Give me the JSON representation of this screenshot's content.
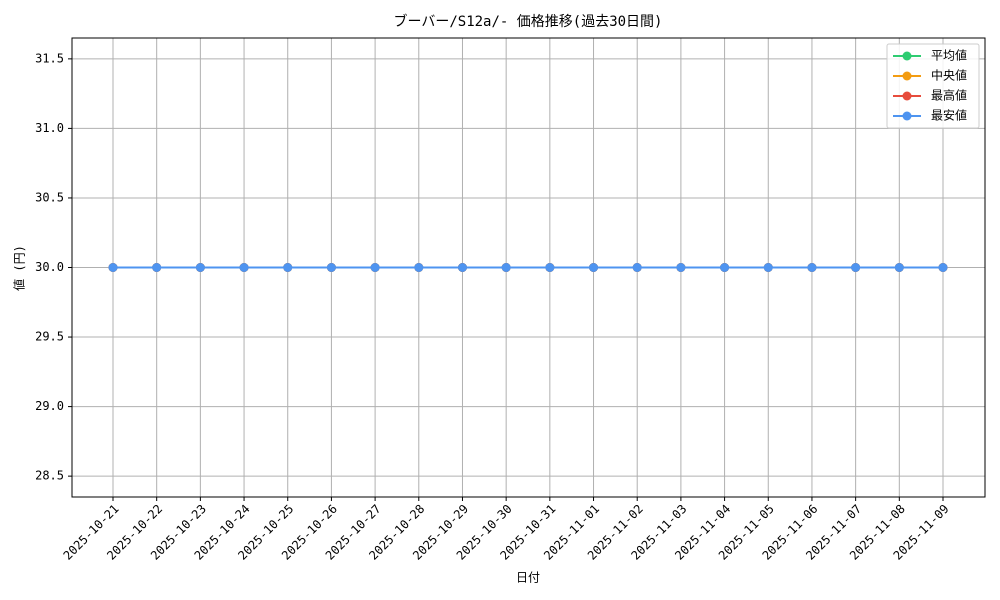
{
  "chart_data": {
    "type": "line",
    "title": "ブーバー/S12a/- 価格推移(過去30日間)",
    "x_label": "日付",
    "y_label": "値 (円)",
    "categories": [
      "2025-10-21",
      "2025-10-22",
      "2025-10-23",
      "2025-10-24",
      "2025-10-25",
      "2025-10-26",
      "2025-10-27",
      "2025-10-28",
      "2025-10-29",
      "2025-10-30",
      "2025-10-31",
      "2025-11-01",
      "2025-11-02",
      "2025-11-03",
      "2025-11-04",
      "2025-11-05",
      "2025-11-06",
      "2025-11-07",
      "2025-11-08",
      "2025-11-09"
    ],
    "series": [
      {
        "name": "平均値",
        "color": "#2ecc71",
        "values": [
          30,
          30,
          30,
          30,
          30,
          30,
          30,
          30,
          30,
          30,
          30,
          30,
          30,
          30,
          30,
          30,
          30,
          30,
          30,
          30
        ]
      },
      {
        "name": "中央値",
        "color": "#f39c12",
        "values": [
          30,
          30,
          30,
          30,
          30,
          30,
          30,
          30,
          30,
          30,
          30,
          30,
          30,
          30,
          30,
          30,
          30,
          30,
          30,
          30
        ]
      },
      {
        "name": "最高値",
        "color": "#e74c3c",
        "values": [
          30,
          30,
          30,
          30,
          30,
          30,
          30,
          30,
          30,
          30,
          30,
          30,
          30,
          30,
          30,
          30,
          30,
          30,
          30,
          30
        ]
      },
      {
        "name": "最安値",
        "color": "#4e94f0",
        "values": [
          30,
          30,
          30,
          30,
          30,
          30,
          30,
          30,
          30,
          30,
          30,
          30,
          30,
          30,
          30,
          30,
          30,
          30,
          30,
          30
        ]
      }
    ],
    "ylim": [
      28.35,
      31.65
    ],
    "yticks": [
      28.5,
      {
        "value": 29,
        "label": "29.0"
      },
      29.5,
      {
        "value": 30,
        "label": "30.0"
      },
      30.5,
      {
        "value": 31,
        "label": "31.0"
      },
      31.5
    ],
    "grid": true,
    "legend": "upper-right"
  }
}
